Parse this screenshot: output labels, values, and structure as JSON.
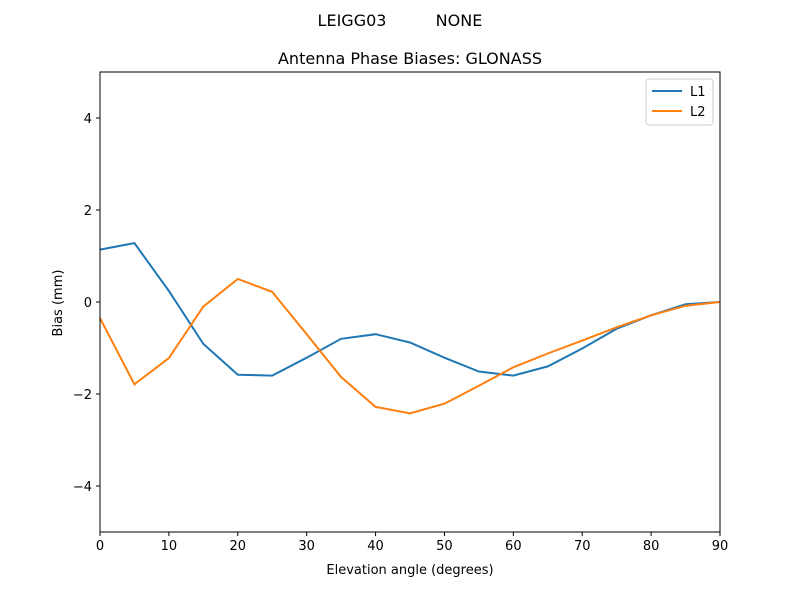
{
  "chart_data": {
    "type": "line",
    "suptitle_left": "LEIGG03",
    "suptitle_right": "NONE",
    "title": "Antenna Phase Biases: GLONASS",
    "xlabel": "Elevation angle (degrees)",
    "ylabel": "Bias (mm)",
    "xlim": [
      0,
      90
    ],
    "ylim": [
      -5,
      5
    ],
    "xticks": [
      0,
      10,
      20,
      30,
      40,
      50,
      60,
      70,
      80,
      90
    ],
    "yticks": [
      -4,
      -2,
      0,
      2,
      4
    ],
    "ytick_labels": [
      "−4",
      "−2",
      "0",
      "2",
      "4"
    ],
    "grid": false,
    "legend_position": "top-right",
    "x": [
      0,
      5,
      10,
      15,
      20,
      25,
      30,
      35,
      40,
      45,
      50,
      55,
      60,
      65,
      70,
      75,
      80,
      85,
      90
    ],
    "series": [
      {
        "name": "L1",
        "color": "#1f77b4",
        "values": [
          1.14,
          1.28,
          0.24,
          -0.91,
          -1.58,
          -1.6,
          -1.21,
          -0.8,
          -0.7,
          -0.88,
          -1.21,
          -1.51,
          -1.6,
          -1.4,
          -1.01,
          -0.58,
          -0.29,
          -0.05,
          0.0
        ]
      },
      {
        "name": "L2",
        "color": "#ff7f0e",
        "values": [
          -0.35,
          -1.79,
          -1.22,
          -0.1,
          0.5,
          0.22,
          -0.7,
          -1.63,
          -2.28,
          -2.42,
          -2.21,
          -1.82,
          -1.42,
          -1.12,
          -0.84,
          -0.55,
          -0.29,
          -0.08,
          0.0
        ]
      }
    ]
  }
}
